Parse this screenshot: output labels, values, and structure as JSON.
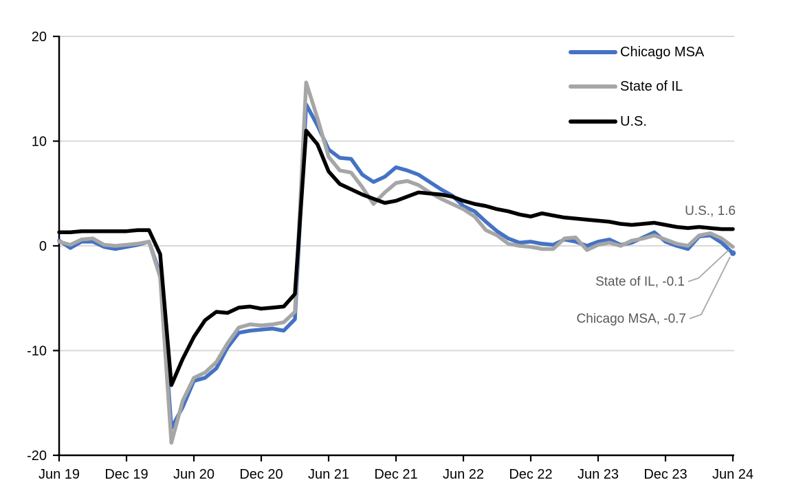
{
  "chart_data": {
    "type": "line",
    "title": "",
    "xlabel": "",
    "ylabel": "",
    "x_frequency": "monthly",
    "x_range": [
      "Jun 2019",
      "Jun 2024"
    ],
    "x_months": [
      "Jun 19",
      "Jul 19",
      "Aug 19",
      "Sep 19",
      "Oct 19",
      "Nov 19",
      "Dec 19",
      "Jan 20",
      "Feb 20",
      "Mar 20",
      "Apr 20",
      "May 20",
      "Jun 20",
      "Jul 20",
      "Aug 20",
      "Sep 20",
      "Oct 20",
      "Nov 20",
      "Dec 20",
      "Jan 21",
      "Feb 21",
      "Mar 21",
      "Apr 21",
      "May 21",
      "Jun 21",
      "Jul 21",
      "Aug 21",
      "Sep 21",
      "Oct 21",
      "Nov 21",
      "Dec 21",
      "Jan 22",
      "Feb 22",
      "Mar 22",
      "Apr 22",
      "May 22",
      "Jun 22",
      "Jul 22",
      "Aug 22",
      "Sep 22",
      "Oct 22",
      "Nov 22",
      "Dec 22",
      "Jan 23",
      "Feb 23",
      "Mar 23",
      "Apr 23",
      "May 23",
      "Jun 23",
      "Jul 23",
      "Aug 23",
      "Sep 23",
      "Oct 23",
      "Nov 23",
      "Dec 23",
      "Jan 24",
      "Feb 24",
      "Mar 24",
      "Apr 24",
      "May 24",
      "Jun 24"
    ],
    "x_tick_labels": [
      "Jun 19",
      "Dec 19",
      "Jun 20",
      "Dec 20",
      "Jun 21",
      "Dec 21",
      "Jun 22",
      "Dec 22",
      "Jun 23",
      "Dec 23",
      "Jun 24"
    ],
    "ylim": [
      -20,
      20
    ],
    "y_ticks": [
      20,
      10,
      0,
      -10,
      -20
    ],
    "gridlines": [
      20,
      10,
      0,
      -10
    ],
    "grid": "horizontal-only",
    "legend_position": "inside-top-right",
    "series": [
      {
        "name": "Chicago MSA",
        "color": "#4472C4",
        "end_value": -0.7,
        "values": [
          0.5,
          -0.2,
          0.4,
          0.4,
          -0.1,
          -0.3,
          -0.1,
          0.1,
          0.4,
          -2.7,
          -17.4,
          -15.4,
          -12.9,
          -12.6,
          -11.7,
          -9.7,
          -8.3,
          -8.1,
          -8.0,
          -7.9,
          -8.1,
          -7.0,
          13.5,
          11.5,
          9.2,
          8.4,
          8.3,
          6.8,
          6.1,
          6.6,
          7.5,
          7.2,
          6.8,
          6.1,
          5.4,
          4.8,
          3.8,
          3.3,
          2.3,
          1.4,
          0.7,
          0.3,
          0.4,
          0.2,
          0.1,
          0.6,
          0.4,
          0.0,
          0.4,
          0.6,
          0.1,
          0.3,
          0.8,
          1.3,
          0.4,
          0.0,
          -0.3,
          0.9,
          1.0,
          0.3,
          -0.7
        ]
      },
      {
        "name": "State of IL",
        "color": "#A6A6A6",
        "end_value": -0.1,
        "values": [
          0.4,
          0.1,
          0.6,
          0.7,
          0.1,
          0.0,
          0.1,
          0.2,
          0.4,
          -3.0,
          -18.8,
          -14.8,
          -12.6,
          -12.1,
          -11.1,
          -9.3,
          -7.8,
          -7.5,
          -7.6,
          -7.5,
          -7.3,
          -6.3,
          15.6,
          12.2,
          8.5,
          7.2,
          7.0,
          5.6,
          4.0,
          5.1,
          6.0,
          6.2,
          5.8,
          5.1,
          4.5,
          4.0,
          3.5,
          2.8,
          1.5,
          1.0,
          0.2,
          0.0,
          -0.1,
          -0.3,
          -0.3,
          0.7,
          0.8,
          -0.4,
          0.1,
          0.3,
          0.0,
          0.5,
          0.7,
          1.0,
          0.6,
          0.2,
          0.0,
          1.0,
          1.2,
          0.7,
          -0.1
        ]
      },
      {
        "name": "U.S.",
        "color": "#000000",
        "end_value": 1.6,
        "values": [
          1.3,
          1.3,
          1.4,
          1.4,
          1.4,
          1.4,
          1.4,
          1.5,
          1.5,
          -0.8,
          -13.3,
          -10.8,
          -8.7,
          -7.1,
          -6.3,
          -6.4,
          -5.9,
          -5.8,
          -6.0,
          -5.9,
          -5.8,
          -4.6,
          11.0,
          9.7,
          7.1,
          5.9,
          5.4,
          4.9,
          4.5,
          4.1,
          4.3,
          4.7,
          5.1,
          5.0,
          4.9,
          4.7,
          4.3,
          4.0,
          3.8,
          3.5,
          3.3,
          3.0,
          2.8,
          3.1,
          2.9,
          2.7,
          2.6,
          2.5,
          2.4,
          2.3,
          2.1,
          2.0,
          2.1,
          2.2,
          2.0,
          1.8,
          1.7,
          1.8,
          1.7,
          1.6,
          1.6
        ]
      }
    ],
    "annotations": [
      {
        "text": "U.S., 1.6"
      },
      {
        "text": "State of IL, -0.1"
      },
      {
        "text": "Chicago MSA, -0.7"
      }
    ],
    "colors": {
      "gridline": "#D9D9D9",
      "axis": "#000000",
      "tick_label": "#000000",
      "annotation_text": "#595959",
      "leader_line": "#A6A6A6",
      "background": "#FFFFFF"
    }
  }
}
